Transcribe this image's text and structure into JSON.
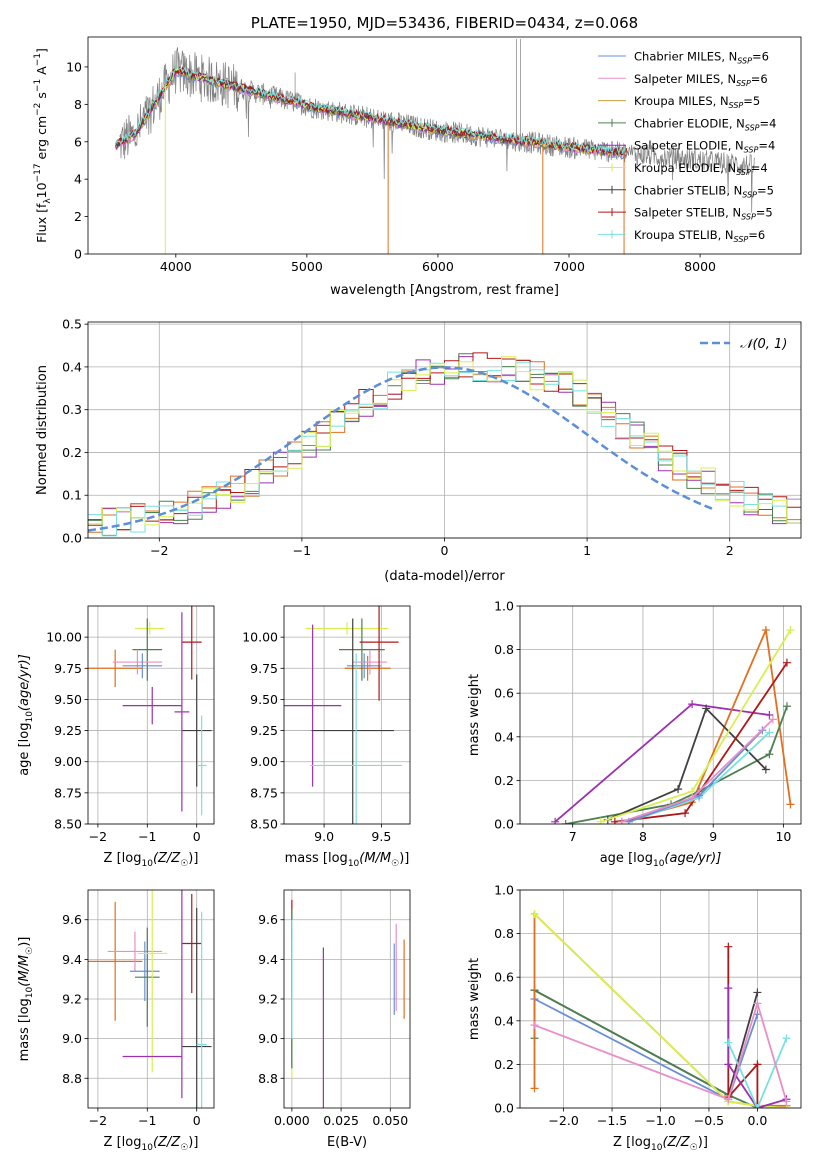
{
  "chart_data": [
    {
      "id": "spectrum",
      "type": "line",
      "title": "PLATE=1950, MJD=53436, FIBERID=0434, z=0.068",
      "xlabel": "wavelength [Angstrom, rest frame]",
      "ylabel_main": "Flux [f",
      "ylabel_sub1": "λ",
      "ylabel_mid": "10",
      "ylabel_sup1": "−17",
      "ylabel_rest": " erg cm",
      "ylabel_sup2": "−2",
      "ylabel_s": " s",
      "ylabel_sup3": "−1",
      "ylabel_A": " A",
      "ylabel_sup4": "−1",
      "ylabel_end": "]",
      "xlim": [
        3330,
        8770
      ],
      "ylim": [
        0,
        11.6
      ],
      "xticks": [
        4000,
        5000,
        6000,
        7000,
        8000
      ],
      "yticks": [
        0,
        2,
        4,
        6,
        8,
        10
      ],
      "grid": false,
      "legend_position": "top-right",
      "legend": [
        {
          "name": "Chabrier MILES, N",
          "sub": "SSP",
          "tail": "=6",
          "color": "#6a8fd8"
        },
        {
          "name": "Salpeter MILES, N",
          "sub": "SSP",
          "tail": "=6",
          "color": "#e88fc8"
        },
        {
          "name": "Kroupa MILES, N",
          "sub": "SSP",
          "tail": "=5",
          "color": "#c8a040"
        },
        {
          "name": "Chabrier ELODIE, N",
          "sub": "SSP",
          "tail": "=4",
          "color": "#4d8050"
        },
        {
          "name": "Salpeter ELODIE, N",
          "sub": "SSP",
          "tail": "=4",
          "color": "#9b30b0"
        },
        {
          "name": "Kroupa ELODIE, N",
          "sub": "SSP",
          "tail": "=4",
          "color": "#d8ef50"
        },
        {
          "name": "Chabrier STELIB, N",
          "sub": "SSP",
          "tail": "=5",
          "color": "#404040"
        },
        {
          "name": "Salpeter STELIB, N",
          "sub": "SSP",
          "tail": "=5",
          "color": "#b01818"
        },
        {
          "name": "Kroupa STELIB, N",
          "sub": "SSP",
          "tail": "=6",
          "color": "#78e0e0"
        }
      ],
      "series_note": "",
      "data_color": "#808080",
      "model_range": [
        3540,
        7440
      ],
      "data_range": [
        3570,
        8420
      ]
    },
    {
      "id": "residuals",
      "type": "histogram",
      "xlabel": "(data-model)/error",
      "ylabel": "Normed distribution",
      "xlim": [
        -2.5,
        2.5
      ],
      "ylim": [
        0,
        0.505
      ],
      "xticks": [
        -2,
        -1,
        0,
        1,
        2
      ],
      "xtick_labels": [
        "−2",
        "−1",
        "0",
        "1",
        "2"
      ],
      "yticks": [
        0,
        0.1,
        0.2,
        0.3,
        0.4,
        0.5
      ],
      "ytick_labels": [
        "0.0",
        "0.1",
        "0.2",
        "0.3",
        "0.4",
        "0.5"
      ],
      "grid": true,
      "legend_position": "top-right",
      "legend_label": "𝒩(0, 1)",
      "gauss_color": "#5b8fd8",
      "bin_width": 0.1,
      "hist_colors": [
        "#9b30b0",
        "#e07020",
        "#4d8050",
        "#b01818",
        "#78e0e0",
        "#d8ef50"
      ],
      "base_values": [
        0.035,
        0.038,
        0.042,
        0.047,
        0.053,
        0.06,
        0.068,
        0.078,
        0.088,
        0.1,
        0.115,
        0.13,
        0.15,
        0.17,
        0.19,
        0.215,
        0.24,
        0.265,
        0.29,
        0.315,
        0.335,
        0.355,
        0.37,
        0.385,
        0.39,
        0.395,
        0.4,
        0.4,
        0.398,
        0.395,
        0.39,
        0.38,
        0.37,
        0.355,
        0.335,
        0.315,
        0.29,
        0.265,
        0.24,
        0.215,
        0.19,
        0.17,
        0.15,
        0.13,
        0.115,
        0.1,
        0.088,
        0.078,
        0.068,
        0.06
      ]
    },
    {
      "id": "age_vs_Z",
      "type": "errorbar",
      "xlabel": "Z [log",
      "xlabel_sub": "10",
      "xlabel_tail": "(Z/Z",
      "xlabel_sun": "☉",
      "xlabel_end": ")]",
      "ylabel": "age  [log",
      "ylabel_sub": "10",
      "ylabel_tail": "(age/yr)]",
      "xlim": [
        -2.2,
        0.35
      ],
      "ylim": [
        8.5,
        10.25
      ],
      "xticks": [
        -2,
        -1,
        0
      ],
      "xtick_labels": [
        "−2",
        "−1",
        "0"
      ],
      "yticks": [
        8.5,
        8.75,
        9.0,
        9.25,
        9.5,
        9.75,
        10.0
      ],
      "ytick_labels": [
        "8.50",
        "8.75",
        "9.00",
        "9.25",
        "9.50",
        "9.75",
        "10.00"
      ],
      "grid": true,
      "points": [
        {
          "x": -0.95,
          "xerr": 0.3,
          "y": 10.07,
          "yerr": 0.05,
          "color": "#d8ef50"
        },
        {
          "x": -1.65,
          "xerr": 0.55,
          "y": 9.75,
          "yerr": 0.15,
          "color": "#e07020"
        },
        {
          "x": -1.0,
          "xerr": 0.3,
          "y": 9.9,
          "yerr": 0.25,
          "color": "#4d8050"
        },
        {
          "x": -1.2,
          "xerr": 0.5,
          "y": 9.8,
          "yerr": 0.1,
          "color": "#e88fc8"
        },
        {
          "x": -1.1,
          "xerr": 0.4,
          "y": 9.77,
          "yerr": 0.1,
          "color": "#6a8fd8"
        },
        {
          "x": -0.9,
          "xerr": 0.6,
          "y": 9.45,
          "yerr": 0.15,
          "color": "#9b30b0"
        },
        {
          "x": -0.1,
          "xerr": 0.2,
          "y": 9.96,
          "yerr": 0.3,
          "color": "#b01818"
        },
        {
          "x": 0.0,
          "xerr": 0.3,
          "y": 9.25,
          "yerr": 0.45,
          "color": "#404040"
        },
        {
          "x": 0.1,
          "xerr": 0.1,
          "y": 8.97,
          "yerr": 0.4,
          "color": "#78e0e0"
        },
        {
          "x": -0.3,
          "xerr": 0.15,
          "y": 9.4,
          "yerr": 0.8,
          "color": "#9b30b0"
        }
      ]
    },
    {
      "id": "age_vs_mass",
      "type": "errorbar",
      "xlabel": "mass [log",
      "xlabel_sub": "10",
      "xlabel_tail": "(M/M",
      "xlabel_sun": "☉",
      "xlabel_end": ")]",
      "xlim": [
        8.65,
        9.75
      ],
      "ylim": [
        8.5,
        10.25
      ],
      "xticks": [
        9.0,
        9.5
      ],
      "xtick_labels": [
        "9.0",
        "9.5"
      ],
      "yticks": [
        8.5,
        8.75,
        9.0,
        9.25,
        9.5,
        9.75,
        10.0
      ],
      "ytick_labels": [
        "8.50",
        "8.75",
        "9.00",
        "9.25",
        "9.50",
        "9.75",
        "10.00"
      ],
      "grid": true,
      "points": [
        {
          "x": 9.2,
          "xerr": 0.36,
          "y": 10.07,
          "yerr": 0.05,
          "color": "#d8ef50"
        },
        {
          "x": 9.38,
          "xerr": 0.2,
          "y": 9.75,
          "yerr": 0.1,
          "color": "#e07020"
        },
        {
          "x": 9.33,
          "xerr": 0.2,
          "y": 9.9,
          "yerr": 0.25,
          "color": "#4d8050"
        },
        {
          "x": 9.4,
          "xerr": 0.15,
          "y": 9.8,
          "yerr": 0.1,
          "color": "#e88fc8"
        },
        {
          "x": 9.35,
          "xerr": 0.15,
          "y": 9.77,
          "yerr": 0.1,
          "color": "#6a8fd8"
        },
        {
          "x": 8.9,
          "xerr": 0.25,
          "y": 9.45,
          "yerr": 0.65,
          "color": "#9b30b0"
        },
        {
          "x": 9.48,
          "xerr": 0.17,
          "y": 9.96,
          "yerr": 0.47,
          "color": "#b01818"
        },
        {
          "x": 9.25,
          "xerr": 0.36,
          "y": 9.25,
          "yerr": 0.9,
          "color": "#404040"
        },
        {
          "x": 9.28,
          "xerr": 0.4,
          "y": 8.97,
          "yerr": 0.9,
          "color": "#78e0e0"
        }
      ]
    },
    {
      "id": "mass_weight_vs_age",
      "type": "line",
      "xlabel": "age  [log",
      "xlabel_sub": "10",
      "xlabel_tail": "(age/yr)]",
      "ylabel": "mass weight",
      "xlim": [
        6.25,
        10.25
      ],
      "ylim": [
        0,
        1.0
      ],
      "xticks": [
        7,
        8,
        9,
        10
      ],
      "yticks": [
        0,
        0.2,
        0.4,
        0.6,
        0.8,
        1.0
      ],
      "ytick_labels": [
        "0.0",
        "0.2",
        "0.4",
        "0.6",
        "0.8",
        "1.0"
      ],
      "grid": true,
      "series": [
        {
          "color": "#9b30b0",
          "x": [
            6.75,
            8.7,
            9.8
          ],
          "y": [
            0.01,
            0.55,
            0.5
          ]
        },
        {
          "color": "#e07020",
          "x": [
            7.7,
            8.7,
            9.75,
            10.1
          ],
          "y": [
            0.01,
            0.1,
            0.89,
            0.09
          ]
        },
        {
          "color": "#4d8050",
          "x": [
            6.9,
            8.4,
            8.8,
            9.8,
            10.05
          ],
          "y": [
            0.0,
            0.09,
            0.15,
            0.32,
            0.54
          ]
        },
        {
          "color": "#404040",
          "x": [
            7.5,
            8.5,
            8.9,
            9.75
          ],
          "y": [
            0.02,
            0.16,
            0.53,
            0.25
          ]
        },
        {
          "color": "#b01818",
          "x": [
            7.6,
            8.6,
            10.05
          ],
          "y": [
            0.01,
            0.05,
            0.74
          ]
        },
        {
          "color": "#d8ef50",
          "x": [
            7.4,
            8.7,
            10.1
          ],
          "y": [
            0.01,
            0.15,
            0.89
          ]
        },
        {
          "color": "#78e0e0",
          "x": [
            7.8,
            8.8,
            9.8
          ],
          "y": [
            0.01,
            0.12,
            0.42
          ]
        },
        {
          "color": "#6a8fd8",
          "x": [
            7.8,
            8.8,
            9.7
          ],
          "y": [
            0.01,
            0.13,
            0.43
          ]
        },
        {
          "color": "#e88fc8",
          "x": [
            7.7,
            8.7,
            9.85
          ],
          "y": [
            0.01,
            0.12,
            0.48
          ]
        }
      ]
    },
    {
      "id": "mass_vs_Z",
      "type": "errorbar",
      "xlabel": "Z [log",
      "xlabel_sub": "10",
      "xlabel_tail": "(Z/Z",
      "xlabel_sun": "☉",
      "xlabel_end": ")]",
      "ylabel": "mass [log",
      "ylabel_sub": "10",
      "ylabel_tail": "(M/M",
      "ylabel_sun": "☉",
      "ylabel_end": ")]",
      "xlim": [
        -2.2,
        0.35
      ],
      "ylim": [
        8.65,
        9.75
      ],
      "xticks": [
        -2,
        -1,
        0
      ],
      "xtick_labels": [
        "−2",
        "−1",
        "0"
      ],
      "yticks": [
        8.8,
        9.0,
        9.2,
        9.4,
        9.6
      ],
      "ytick_labels": [
        "8.8",
        "9.0",
        "9.2",
        "9.4",
        "9.6"
      ],
      "grid": true,
      "points": [
        {
          "x": -1.65,
          "xerr": 0.55,
          "y": 9.39,
          "yerr": 0.3,
          "color": "#e07020"
        },
        {
          "x": -1.25,
          "xerr": 0.55,
          "y": 9.44,
          "yerr": 0.1,
          "color": "#e88fc8"
        },
        {
          "x": -1.05,
          "xerr": 0.3,
          "y": 9.34,
          "yerr": 0.15,
          "color": "#6a8fd8"
        },
        {
          "x": -1.0,
          "xerr": 0.25,
          "y": 9.31,
          "yerr": 0.25,
          "color": "#4d8050"
        },
        {
          "x": -0.9,
          "xerr": 0.3,
          "y": 9.43,
          "yerr": 0.6,
          "color": "#d8ef50"
        },
        {
          "x": -0.9,
          "xerr": 0.6,
          "y": 8.91,
          "yerr": 0.0,
          "color": "#9b30b0"
        },
        {
          "x": -0.1,
          "xerr": 0.2,
          "y": 9.48,
          "yerr": 0.25,
          "color": "#b01818"
        },
        {
          "x": 0.0,
          "xerr": 0.3,
          "y": 8.96,
          "yerr": 0.7,
          "color": "#404040"
        },
        {
          "x": 0.1,
          "xerr": 0.1,
          "y": 8.97,
          "yerr": 0.67,
          "color": "#78e0e0"
        },
        {
          "x": -0.3,
          "xerr": 0.0,
          "y": 9.25,
          "yerr": 0.55,
          "color": "#9b30b0"
        }
      ]
    },
    {
      "id": "mass_vs_EBV",
      "type": "errorbar",
      "xlabel": "E(B-V)",
      "xlim": [
        -0.004,
        0.06
      ],
      "ylim": [
        8.65,
        9.75
      ],
      "xticks": [
        0.0,
        0.025,
        0.05
      ],
      "xtick_labels": [
        "0.000",
        "0.025",
        "0.050"
      ],
      "yticks": [
        8.8,
        9.0,
        9.2,
        9.4,
        9.6
      ],
      "ytick_labels": [
        "8.8",
        "9.0",
        "9.2",
        "9.4",
        "9.6"
      ],
      "grid": true,
      "points": [
        {
          "x": 0.0,
          "xerr": 0,
          "y": 9.45,
          "yerr": 0.25,
          "color": "#b01818"
        },
        {
          "x": 0.0,
          "xerr": 0,
          "y": 9.2,
          "yerr": 0.35,
          "color": "#404040"
        },
        {
          "x": 0.0,
          "xerr": 0,
          "y": 9.15,
          "yerr": 0.35,
          "color": "#d8ef50"
        },
        {
          "x": 0.0,
          "xerr": 0,
          "y": 9.25,
          "yerr": 0.4,
          "color": "#4d8050"
        },
        {
          "x": 0.0,
          "xerr": 0,
          "y": 9.3,
          "yerr": 0.3,
          "color": "#78e0e0"
        },
        {
          "x": 0.016,
          "xerr": 0,
          "y": 8.91,
          "yerr": 0.55,
          "color": "#9b30b0"
        },
        {
          "x": 0.052,
          "xerr": 0,
          "y": 9.3,
          "yerr": 0.18,
          "color": "#6a8fd8"
        },
        {
          "x": 0.053,
          "xerr": 0,
          "y": 9.36,
          "yerr": 0.22,
          "color": "#e88fc8"
        },
        {
          "x": 0.057,
          "xerr": 0,
          "y": 9.3,
          "yerr": 0.2,
          "color": "#e07020"
        }
      ]
    },
    {
      "id": "mass_weight_vs_Z",
      "type": "line",
      "xlabel": "Z [log",
      "xlabel_sub": "10",
      "xlabel_tail": "(Z/Z",
      "xlabel_sun": "☉",
      "xlabel_end": ")]",
      "ylabel": "mass weight",
      "xlim": [
        -2.45,
        0.45
      ],
      "ylim": [
        0,
        1.0
      ],
      "xticks": [
        -2.0,
        -1.5,
        -1.0,
        -0.5,
        0.0
      ],
      "xtick_labels": [
        "−2.0",
        "−1.5",
        "−1.0",
        "−0.5",
        "0.0"
      ],
      "yticks": [
        0,
        0.2,
        0.4,
        0.6,
        0.8,
        1.0
      ],
      "ytick_labels": [
        "0.0",
        "0.2",
        "0.4",
        "0.6",
        "0.8",
        "1.0"
      ],
      "grid": true,
      "series": [
        {
          "color": "#6a8fd8",
          "x": [
            -2.3,
            -0.3,
            0.0
          ],
          "y": [
            0.5,
            0.04,
            0.43
          ]
        },
        {
          "color": "#404040",
          "x": [
            -2.3,
            -0.3,
            0.0
          ],
          "y": [
            0.54,
            0.06,
            0.53
          ]
        },
        {
          "color": "#4d8050",
          "x": [
            -2.3,
            -2.3,
            -0.3,
            0.0
          ],
          "y": [
            0.32,
            0.54,
            0.06,
            0.0
          ]
        },
        {
          "color": "#e07020",
          "x": [
            -2.3,
            -2.3,
            -0.3,
            0.0,
            0.3
          ],
          "y": [
            0.09,
            0.89,
            0.03,
            0.01,
            0.01
          ]
        },
        {
          "color": "#d8ef50",
          "x": [
            -2.3,
            -0.3,
            0.0,
            0.3
          ],
          "y": [
            0.89,
            0.03,
            0.01,
            0.0
          ]
        },
        {
          "color": "#b01818",
          "x": [
            -0.3,
            -0.3,
            0.0,
            0.0
          ],
          "y": [
            0.74,
            0.05,
            0.2,
            0.0
          ]
        },
        {
          "color": "#9b30b0",
          "x": [
            -0.3,
            -0.3,
            0.0,
            0.3
          ],
          "y": [
            0.55,
            0.2,
            0.0,
            0.04
          ]
        },
        {
          "color": "#78e0e0",
          "x": [
            -0.3,
            0.0,
            0.3
          ],
          "y": [
            0.3,
            0.0,
            0.32
          ]
        },
        {
          "color": "#e88fc8",
          "x": [
            -2.3,
            -0.3,
            0.0,
            0.3
          ],
          "y": [
            0.38,
            0.04,
            0.48,
            0.03
          ]
        }
      ]
    }
  ]
}
